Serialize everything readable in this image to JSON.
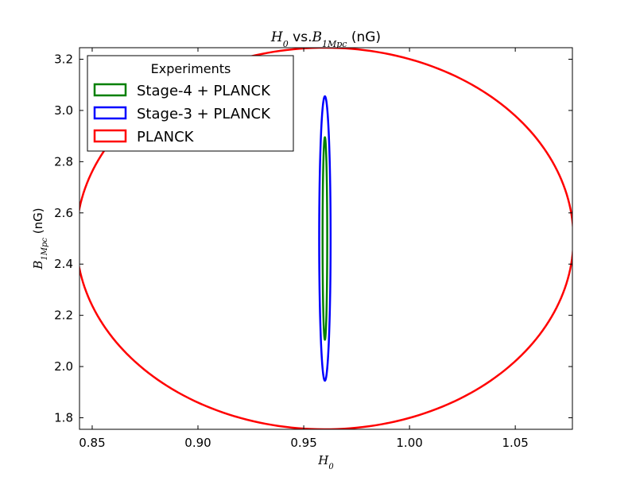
{
  "chart_data": {
    "type": "contour",
    "title": {
      "math_left": "H",
      "math_left_sub": "0",
      "mid": " vs.",
      "math_right": "B",
      "math_right_sub": "1Mpc",
      "suffix": " (nG)"
    },
    "xlabel": {
      "math": "H",
      "sub": "0"
    },
    "ylabel": {
      "math": "B",
      "sub": "1Mpc",
      "suffix": " (nG)"
    },
    "xlim": [
      0.844,
      1.077
    ],
    "ylim": [
      1.755,
      3.245
    ],
    "xticks": [
      {
        "value": 0.85,
        "label": "0.85"
      },
      {
        "value": 0.9,
        "label": "0.90"
      },
      {
        "value": 0.95,
        "label": "0.95"
      },
      {
        "value": 1.0,
        "label": "1.00"
      },
      {
        "value": 1.05,
        "label": "1.05"
      }
    ],
    "yticks": [
      {
        "value": 1.8,
        "label": "1.8"
      },
      {
        "value": 2.0,
        "label": "2.0"
      },
      {
        "value": 2.2,
        "label": "2.2"
      },
      {
        "value": 2.4,
        "label": "2.4"
      },
      {
        "value": 2.6,
        "label": "2.6"
      },
      {
        "value": 2.8,
        "label": "2.8"
      },
      {
        "value": 3.0,
        "label": "3.0"
      },
      {
        "value": 3.2,
        "label": "3.2"
      }
    ],
    "legend": {
      "title": "Experiments",
      "placement": "top-left"
    },
    "series": [
      {
        "name": "Stage-4 + PLANCK",
        "color": "#008000",
        "center": [
          0.96,
          2.5
        ],
        "semi_x": 0.0011,
        "semi_y": 0.395,
        "tilt_deg": 0
      },
      {
        "name": "Stage-3 + PLANCK",
        "color": "#0000ff",
        "center": [
          0.96,
          2.5
        ],
        "semi_x": 0.0027,
        "semi_y": 0.555,
        "tilt_deg": 0
      },
      {
        "name": "PLANCK",
        "color": "#ff0000",
        "center": [
          0.96,
          2.5
        ],
        "semi_x": 0.1175,
        "semi_y": 0.745,
        "tilt_deg": -4.7
      }
    ]
  }
}
